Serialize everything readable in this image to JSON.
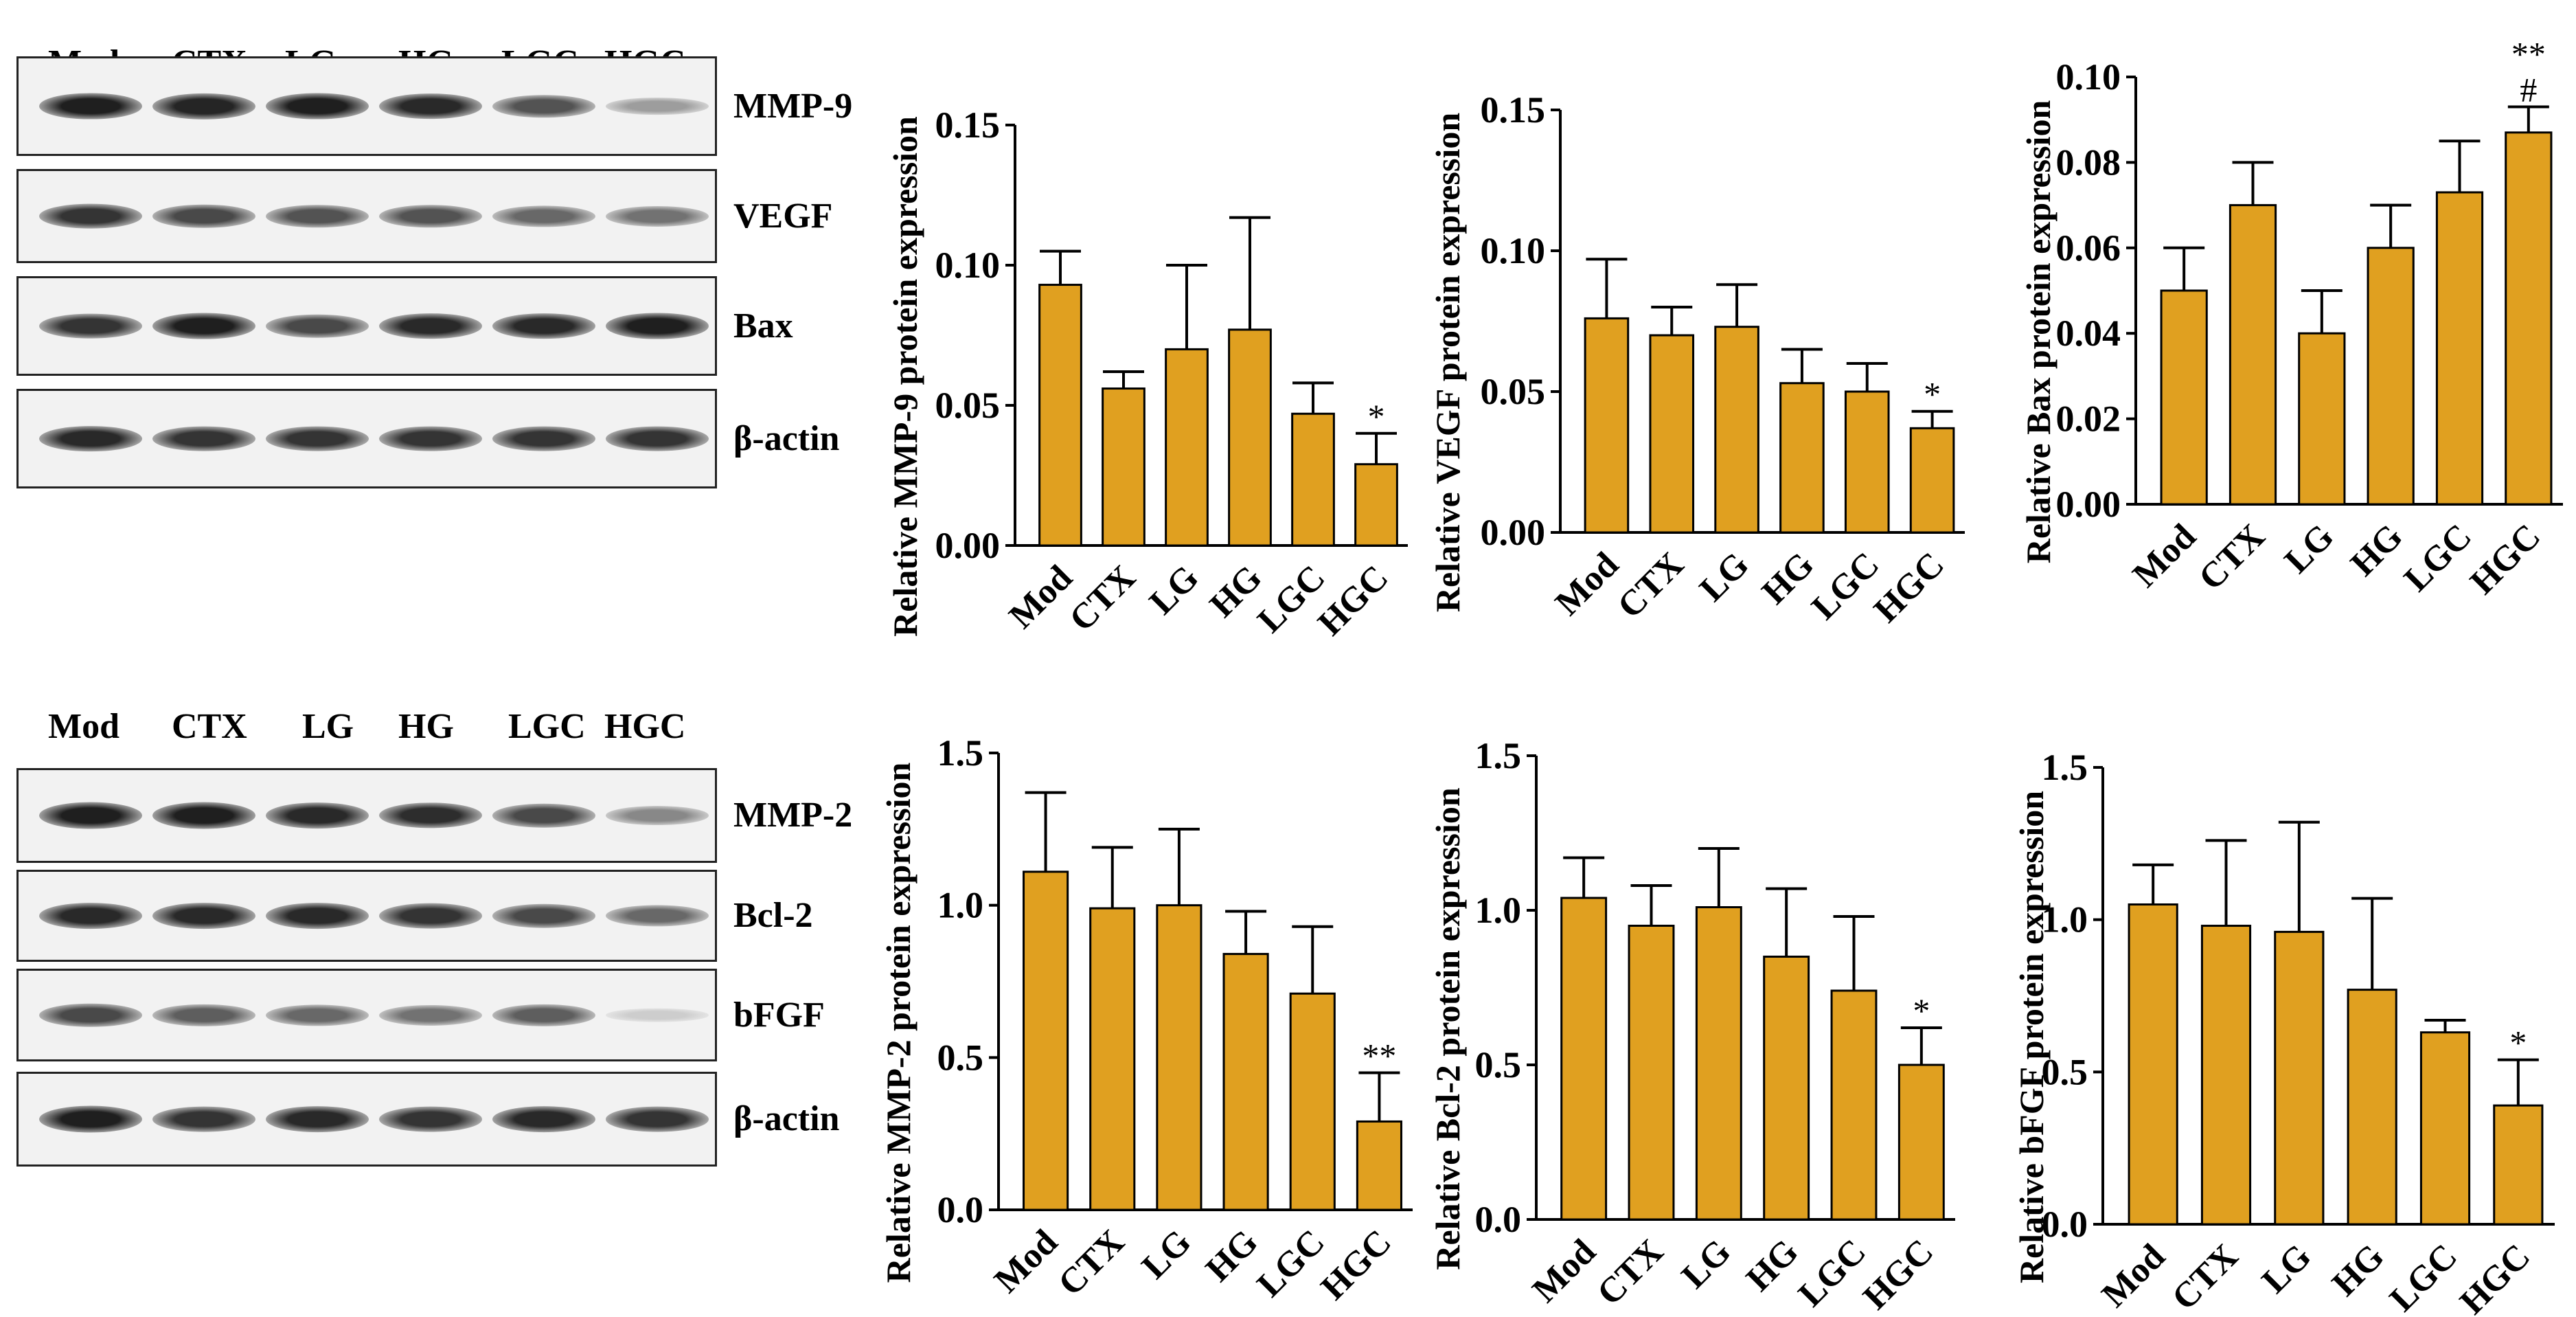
{
  "blots": [
    {
      "lanes": [
        "Mod",
        "CTX",
        "LG",
        "HG",
        "LGC",
        "HGC"
      ],
      "rows": [
        {
          "label": "MMP-9",
          "intensity": [
            0.95,
            0.92,
            0.95,
            0.9,
            0.7,
            0.35
          ]
        },
        {
          "label": "VEGF",
          "intensity": [
            0.85,
            0.75,
            0.7,
            0.7,
            0.6,
            0.55
          ]
        },
        {
          "label": "Bax",
          "intensity": [
            0.85,
            0.95,
            0.75,
            0.9,
            0.9,
            0.95
          ]
        },
        {
          "label": "β-actin",
          "intensity": [
            0.9,
            0.85,
            0.85,
            0.85,
            0.85,
            0.85
          ]
        }
      ]
    },
    {
      "lanes": [
        "Mod",
        "CTX",
        "LG",
        "HG",
        "LGC",
        "HGC"
      ],
      "rows": [
        {
          "label": "MMP-2",
          "intensity": [
            0.95,
            0.95,
            0.9,
            0.88,
            0.75,
            0.45
          ]
        },
        {
          "label": "Bcl-2",
          "intensity": [
            0.9,
            0.9,
            0.9,
            0.85,
            0.75,
            0.6
          ]
        },
        {
          "label": "bFGF",
          "intensity": [
            0.75,
            0.65,
            0.6,
            0.55,
            0.65,
            0.12
          ]
        },
        {
          "label": "β-actin",
          "intensity": [
            0.95,
            0.85,
            0.9,
            0.85,
            0.9,
            0.85
          ]
        }
      ]
    }
  ],
  "chart_data": [
    {
      "type": "bar",
      "ylabel": "Relative MMP-9 protein expression",
      "categories": [
        "Mod",
        "CTX",
        "LG",
        "HG",
        "LGC",
        "HGC"
      ],
      "values": [
        0.093,
        0.056,
        0.07,
        0.077,
        0.047,
        0.029
      ],
      "error_upper": [
        0.105,
        0.062,
        0.1,
        0.117,
        0.058,
        0.04
      ],
      "annotations": [
        "",
        "",
        "",
        "",
        "",
        "*"
      ],
      "ylim": [
        0,
        0.15
      ],
      "yticks": [
        "0.00",
        "0.05",
        "0.10",
        "0.15"
      ],
      "color": "#E0A020"
    },
    {
      "type": "bar",
      "ylabel": "Relative VEGF protein expression",
      "categories": [
        "Mod",
        "CTX",
        "LG",
        "HG",
        "LGC",
        "HGC"
      ],
      "values": [
        0.076,
        0.07,
        0.073,
        0.053,
        0.05,
        0.037
      ],
      "error_upper": [
        0.097,
        0.08,
        0.088,
        0.065,
        0.06,
        0.043
      ],
      "annotations": [
        "",
        "",
        "",
        "",
        "",
        "*"
      ],
      "ylim": [
        0,
        0.15
      ],
      "yticks": [
        "0.00",
        "0.05",
        "0.10",
        "0.15"
      ],
      "color": "#E0A020"
    },
    {
      "type": "bar",
      "ylabel": "Relative Bax protein expression",
      "categories": [
        "Mod",
        "CTX",
        "LG",
        "HG",
        "LGC",
        "HGC"
      ],
      "values": [
        0.05,
        0.07,
        0.04,
        0.06,
        0.073,
        0.087
      ],
      "error_upper": [
        0.06,
        0.08,
        0.05,
        0.07,
        0.085,
        0.093
      ],
      "annotations": [
        "",
        "",
        "",
        "",
        "",
        "#"
      ],
      "annotations2": [
        "",
        "",
        "",
        "",
        "",
        "**"
      ],
      "ylim": [
        0,
        0.1
      ],
      "yticks": [
        "0.00",
        "0.02",
        "0.04",
        "0.06",
        "0.08",
        "0.10"
      ],
      "color": "#E0A020"
    },
    {
      "type": "bar",
      "ylabel": "Relative MMP-2 protein expression",
      "categories": [
        "Mod",
        "CTX",
        "LG",
        "HG",
        "LGC",
        "HGC"
      ],
      "values": [
        1.11,
        0.99,
        1.0,
        0.84,
        0.71,
        0.29
      ],
      "error_upper": [
        1.37,
        1.19,
        1.25,
        0.98,
        0.93,
        0.45
      ],
      "annotations": [
        "",
        "",
        "",
        "",
        "",
        "**"
      ],
      "ylim": [
        0,
        1.5
      ],
      "yticks": [
        "0.0",
        "0.5",
        "1.0",
        "1.5"
      ],
      "color": "#E0A020"
    },
    {
      "type": "bar",
      "ylabel": "Relative Bcl-2 protein expression",
      "categories": [
        "Mod",
        "CTX",
        "LG",
        "HG",
        "LGC",
        "HGC"
      ],
      "values": [
        1.04,
        0.95,
        1.01,
        0.85,
        0.74,
        0.5
      ],
      "error_upper": [
        1.17,
        1.08,
        1.2,
        1.07,
        0.98,
        0.62
      ],
      "annotations": [
        "",
        "",
        "",
        "",
        "",
        "*"
      ],
      "ylim": [
        0,
        1.5
      ],
      "yticks": [
        "0.0",
        "0.5",
        "1.0",
        "1.5"
      ],
      "color": "#E0A020"
    },
    {
      "type": "bar",
      "ylabel": "Relative bFGF protein expression",
      "categories": [
        "Mod",
        "CTX",
        "LG",
        "HG",
        "LGC",
        "HGC"
      ],
      "values": [
        1.05,
        0.98,
        0.96,
        0.77,
        0.63,
        0.39
      ],
      "error_upper": [
        1.18,
        1.26,
        1.32,
        1.07,
        0.67,
        0.54
      ],
      "annotations": [
        "",
        "",
        "",
        "",
        "",
        "*"
      ],
      "ylim": [
        0,
        1.5
      ],
      "yticks": [
        "0.0",
        "0.5",
        "1.0",
        "1.5"
      ],
      "color": "#E0A020"
    }
  ]
}
